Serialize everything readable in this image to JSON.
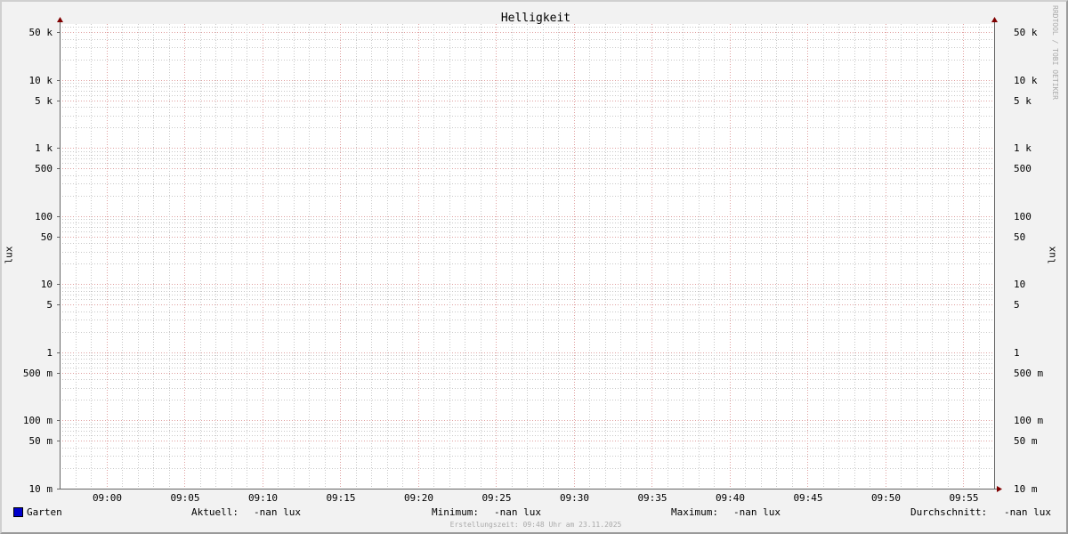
{
  "chart_data": {
    "type": "line",
    "title": "Helligkeit",
    "ylabel": "lux",
    "y_scale": "log",
    "ylim": [
      0.01,
      66000
    ],
    "y_ticks": [
      {
        "v": 50000,
        "l": "50 k"
      },
      {
        "v": 10000,
        "l": "10 k"
      },
      {
        "v": 5000,
        "l": "5 k"
      },
      {
        "v": 1000,
        "l": "1 k"
      },
      {
        "v": 500,
        "l": "500"
      },
      {
        "v": 100,
        "l": "100"
      },
      {
        "v": 50,
        "l": "50"
      },
      {
        "v": 10,
        "l": "10"
      },
      {
        "v": 5,
        "l": "5"
      },
      {
        "v": 1,
        "l": "1"
      },
      {
        "v": 0.5,
        "l": "500 m"
      },
      {
        "v": 0.1,
        "l": "100 m"
      },
      {
        "v": 0.05,
        "l": "50 m"
      },
      {
        "v": 0.01,
        "l": "10 m"
      }
    ],
    "xlim": [
      "08:57",
      "09:57"
    ],
    "x_ticks": [
      "09:00",
      "09:05",
      "09:10",
      "09:15",
      "09:20",
      "09:25",
      "09:30",
      "09:35",
      "09:40",
      "09:45",
      "09:50",
      "09:55"
    ],
    "grid": true,
    "series": [
      {
        "name": "Garten",
        "color": "#0000cc",
        "values": []
      }
    ],
    "legend": {
      "current_label": "Aktuell:",
      "current": "-nan lux",
      "min_label": "Minimum:",
      "min": "-nan lux",
      "max_label": "Maximum:",
      "max": "-nan lux",
      "avg_label": "Durchschnitt:",
      "avg": "-nan lux"
    }
  },
  "watermark": "RRDTOOL / TOBI OETIKER",
  "footer": "Erstellungszeit: 09:48 Uhr am 23.11.2025",
  "colors": {
    "axis": "#666666",
    "arrow": "#800000",
    "major_grid": "#e0a0a0",
    "minor_grid": "#c8c8c8"
  }
}
